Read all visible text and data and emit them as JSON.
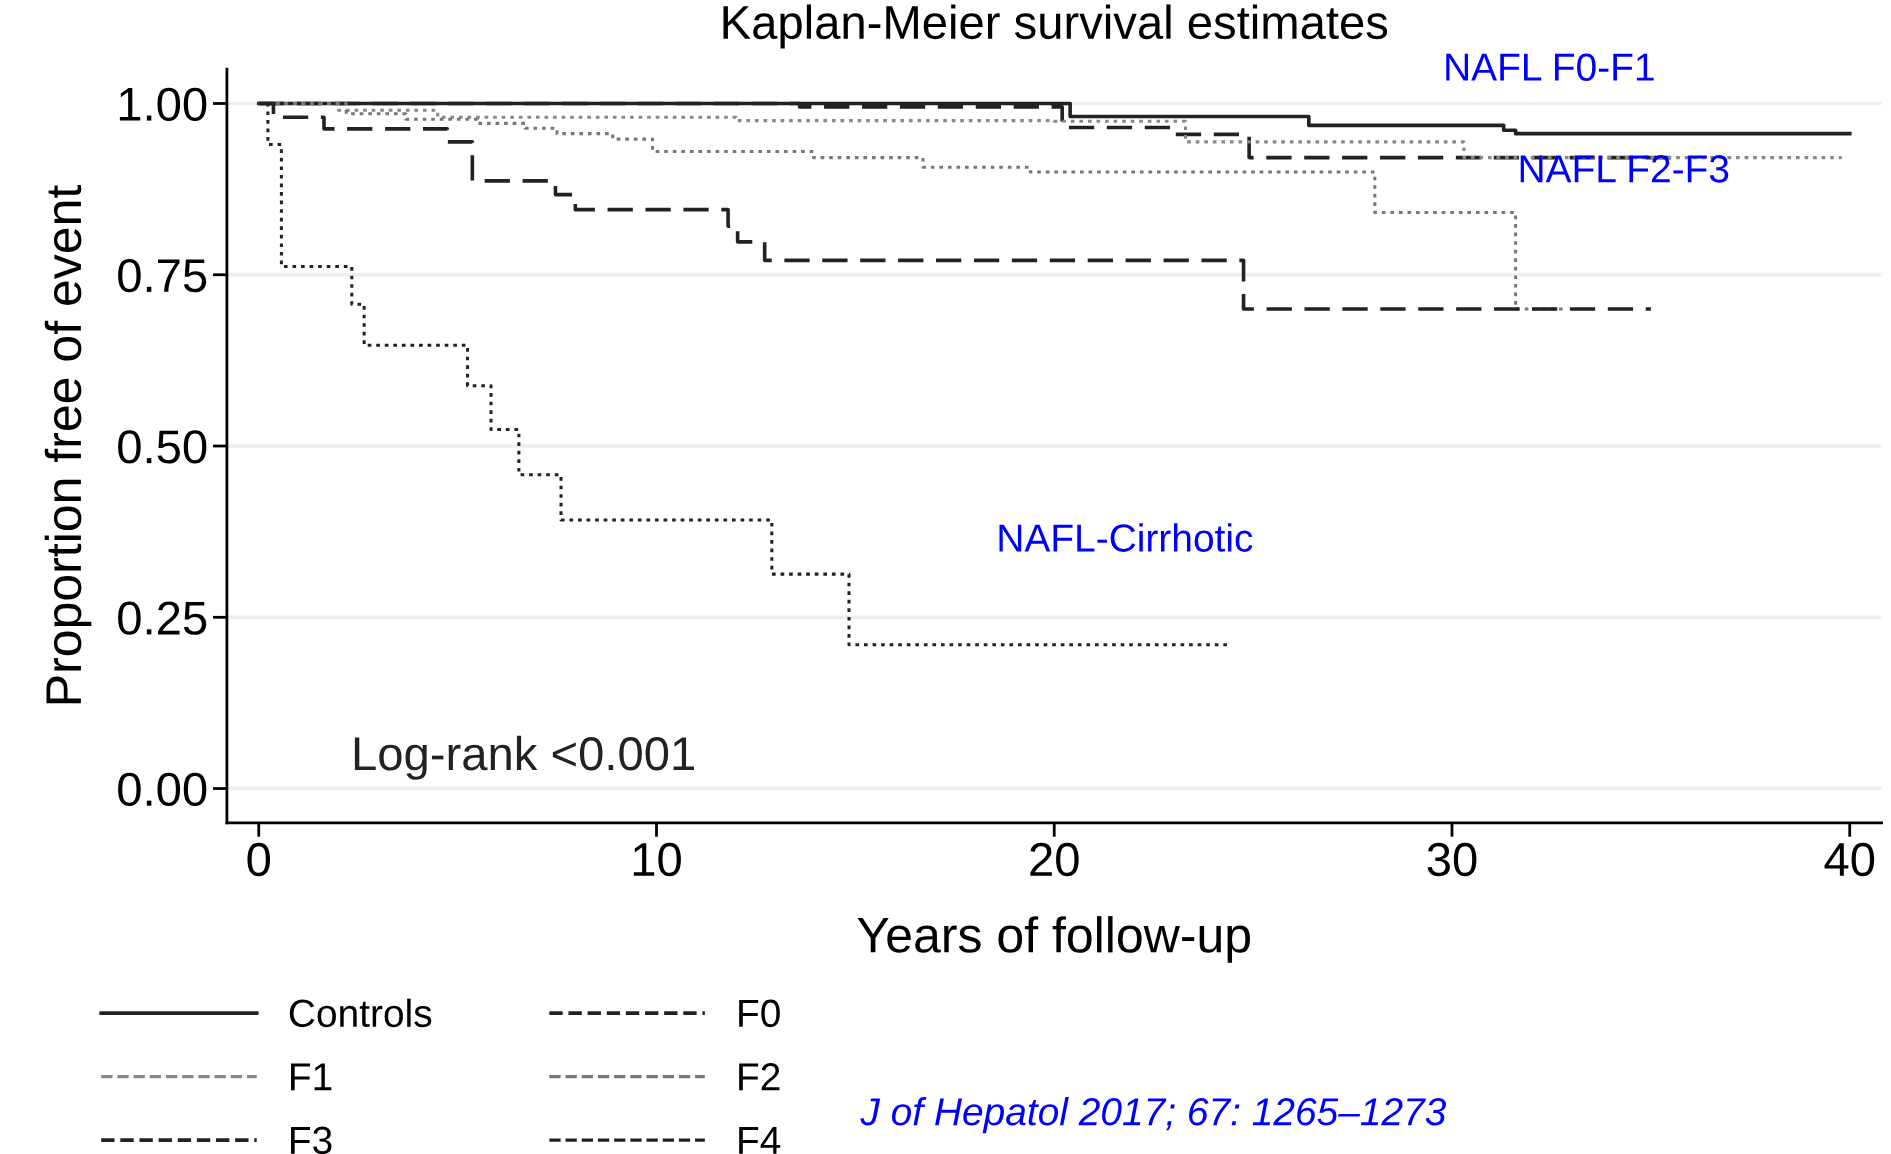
{
  "chart_data": {
    "type": "step",
    "title": "Kaplan-Meier survival estimates",
    "xlabel": "Years of follow-up",
    "ylabel": "Proportion free of event",
    "xlim": [
      -0.8,
      40.8
    ],
    "ylim": [
      -0.05,
      1.05
    ],
    "xticks": [
      0,
      10,
      20,
      30,
      40
    ],
    "yticks": [
      {
        "value": 0,
        "label": "0.00"
      },
      {
        "value": 0.25,
        "label": "0.25"
      },
      {
        "value": 0.5,
        "label": "0.50"
      },
      {
        "value": 0.75,
        "label": "0.75"
      },
      {
        "value": 1,
        "label": "1.00"
      }
    ],
    "grid": "y",
    "legend": "bottom",
    "series": [
      {
        "name": "Controls",
        "color": "#222222",
        "line_style": "solid",
        "x": [
          0,
          20.4,
          26.4,
          31.3,
          31.6,
          40
        ],
        "values": [
          1.0,
          0.981,
          0.968,
          0.961,
          0.956,
          0.956
        ]
      },
      {
        "name": "F0",
        "color": "#222222",
        "line_style": "dashed",
        "x": [
          0,
          13.6,
          20.2,
          23.0,
          24.9,
          35.6
        ],
        "values": [
          1.0,
          0.995,
          0.965,
          0.955,
          0.921,
          0.921
        ]
      },
      {
        "name": "F1",
        "color": "#888888",
        "line_style": "dotted",
        "x": [
          0,
          2.0,
          4.5,
          12.0,
          20.0,
          23.3,
          30.3,
          39.8
        ],
        "values": [
          1.0,
          0.99,
          0.98,
          0.975,
          0.974,
          0.944,
          0.921,
          0.921
        ]
      },
      {
        "name": "F2",
        "color": "#777777",
        "line_style": "dotted",
        "x": [
          0,
          2.2,
          3.7,
          5.5,
          6.7,
          7.5,
          8.9,
          9.9,
          13.95,
          16.7,
          19.4,
          28.06,
          31.6,
          32.8
        ],
        "values": [
          1.0,
          0.985,
          0.977,
          0.971,
          0.964,
          0.956,
          0.948,
          0.93,
          0.921,
          0.907,
          0.9,
          0.841,
          0.7,
          0.7
        ]
      },
      {
        "name": "F3",
        "color": "#222222",
        "line_style": "dashed",
        "x": [
          0,
          0.37,
          1.64,
          4.74,
          5.37,
          7.46,
          7.96,
          11.8,
          12.04,
          12.72,
          24.76,
          35.0
        ],
        "values": [
          1.0,
          0.98,
          0.963,
          0.944,
          0.887,
          0.867,
          0.845,
          0.821,
          0.798,
          0.771,
          0.7,
          0.7
        ]
      },
      {
        "name": "F4",
        "color": "#222222",
        "line_style": "dotted",
        "x": [
          0,
          0.23,
          0.57,
          2.34,
          2.65,
          5.25,
          5.84,
          6.54,
          7.6,
          12.9,
          14.84,
          24.4
        ],
        "values": [
          1.0,
          0.94,
          0.762,
          0.707,
          0.647,
          0.588,
          0.524,
          0.458,
          0.392,
          0.313,
          0.21,
          0.21
        ]
      }
    ],
    "annotations": [
      "NAFL F0-F1",
      "NAFL F2-F3",
      "NAFL-Cirrhotic",
      "Log-rank <0.001",
      "J of Hepatol 2017; 67: 1265–1273"
    ]
  }
}
